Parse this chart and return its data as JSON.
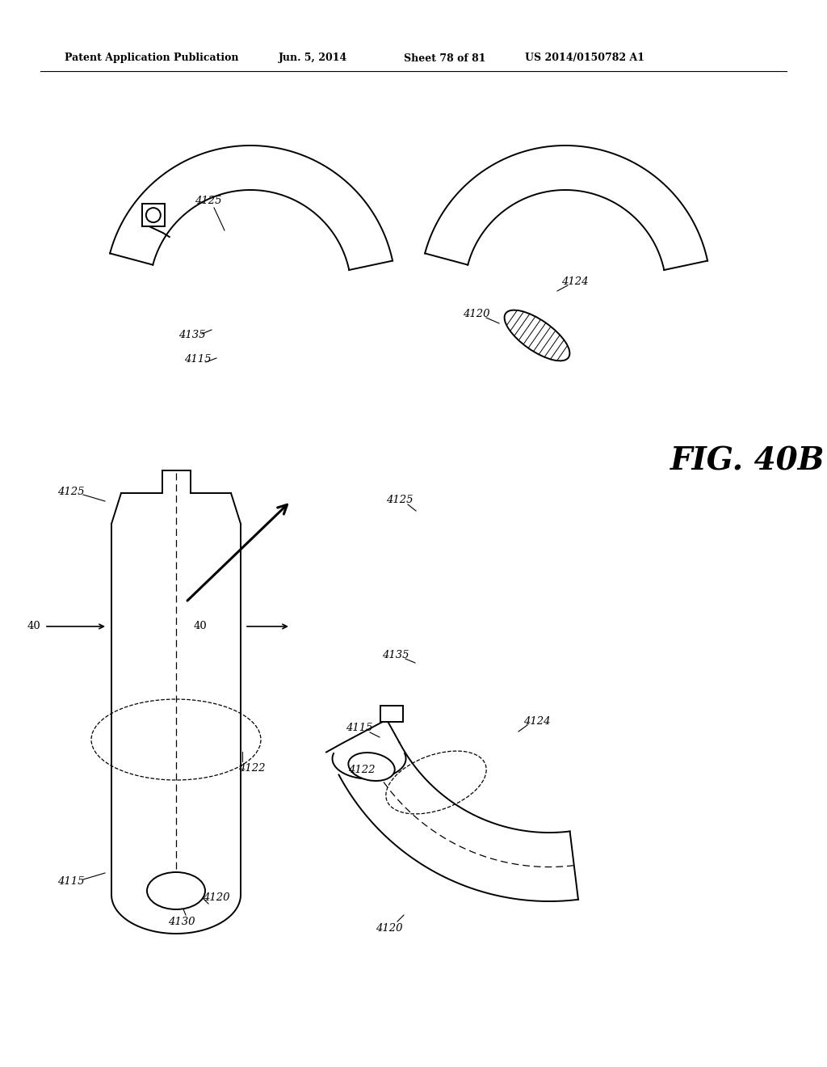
{
  "bg_color": "#ffffff",
  "header_text": "Patent Application Publication",
  "header_date": "Jun. 5, 2014",
  "header_sheet": "Sheet 78 of 81",
  "header_patent": "US 2014/0150782 A1",
  "fig_label": "FIG. 40B",
  "line_color": "#000000",
  "line_width": 1.4,
  "label_fontsize": 9.5,
  "header_fontsize": 9.0
}
